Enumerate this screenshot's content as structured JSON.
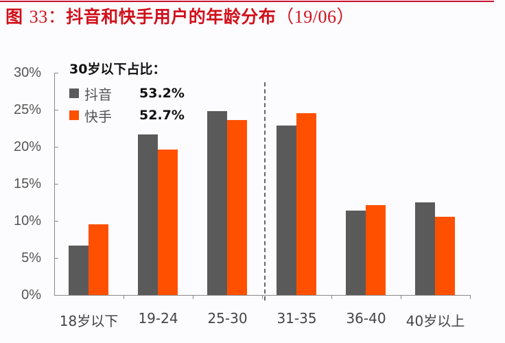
{
  "title": {
    "prefix": "图",
    "number": "33：",
    "text": "抖音和快手用户的年龄分布",
    "suffix": "（19/06）"
  },
  "legend": {
    "title": "30岁以下占比：",
    "items": [
      {
        "name": "抖音",
        "value": "53.2%",
        "color": "#5a5a5a"
      },
      {
        "name": "快手",
        "value": "52.7%",
        "color": "#ff5000"
      }
    ]
  },
  "yaxis": {
    "ticks": [
      "0%",
      "5%",
      "10%",
      "15%",
      "20%",
      "25%",
      "30%"
    ]
  },
  "chart_data": {
    "type": "bar",
    "title": "图 33：抖音和快手用户的年龄分布（19/06）",
    "xlabel": "",
    "ylabel": "",
    "ylim": [
      0,
      30
    ],
    "y_tick_labels": [
      "0%",
      "5%",
      "10%",
      "15%",
      "20%",
      "25%",
      "30%"
    ],
    "categories": [
      "18岁以下",
      "19-24",
      "25-30",
      "31-35",
      "36-40",
      "40岁以上"
    ],
    "series": [
      {
        "name": "抖音",
        "color": "#5a5a5a",
        "values": [
          6.7,
          21.7,
          24.8,
          22.9,
          11.4,
          12.5
        ]
      },
      {
        "name": "快手",
        "color": "#ff5000",
        "values": [
          9.5,
          19.6,
          23.6,
          24.5,
          12.1,
          10.6
        ]
      }
    ],
    "annotations": [
      {
        "text": "30岁以下占比：抖音 53.2%，快手 52.7%"
      },
      {
        "type": "dashed-divider",
        "between": [
          "25-30",
          "31-35"
        ]
      }
    ],
    "grid": false,
    "legend_position": "top-left"
  }
}
